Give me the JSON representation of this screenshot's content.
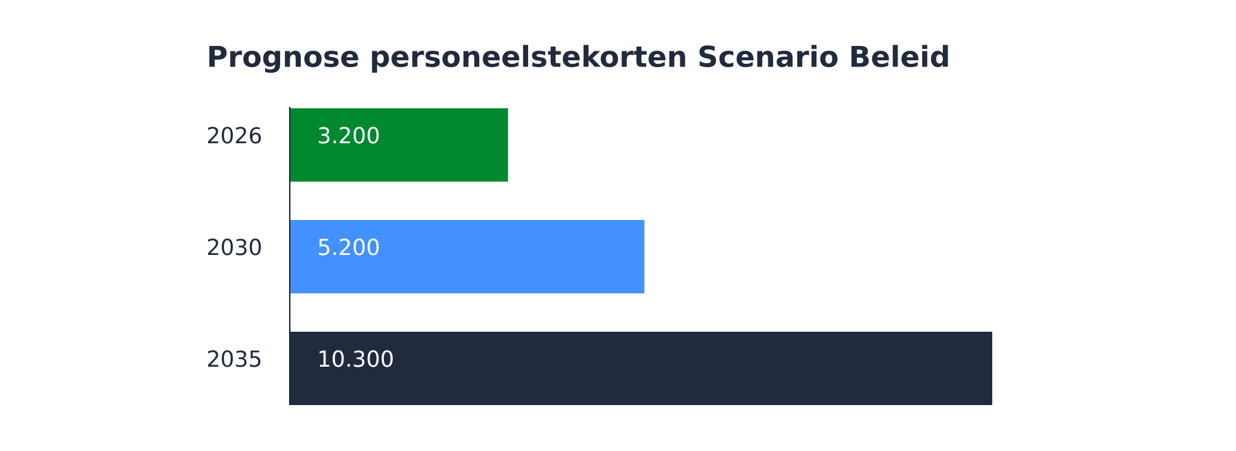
{
  "chart_data": {
    "type": "bar",
    "orientation": "horizontal",
    "title": "Prognose personeelstekorten Scenario Beleid",
    "categories": [
      "2026",
      "2030",
      "2035"
    ],
    "values": [
      3200,
      5200,
      10300
    ],
    "value_labels": [
      "3.200",
      "5.200",
      "10.300"
    ],
    "colors": [
      "#00882f",
      "#4391ff",
      "#212b3e"
    ]
  }
}
